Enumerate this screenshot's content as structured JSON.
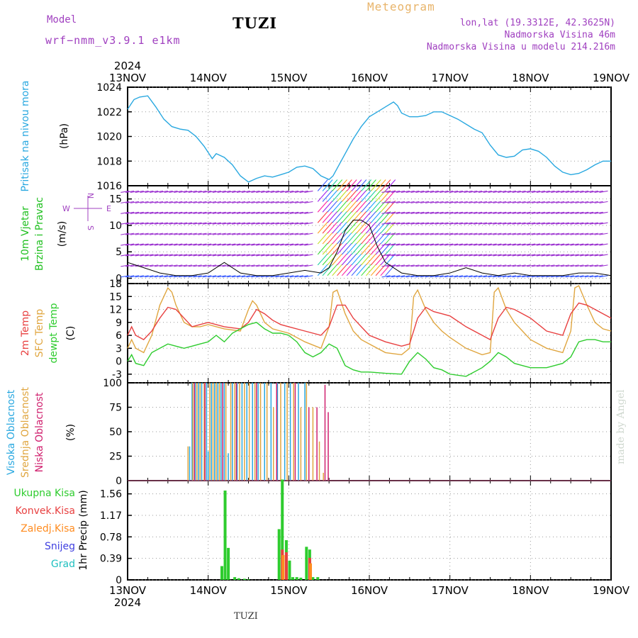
{
  "header": {
    "title": "TUZI",
    "model_label": "Model",
    "model_value": "wrf−nmm_v3.9.1  e1km",
    "meteogram": "Meteogram",
    "info_lines": [
      "lon,lat (19.3312E, 42.3625N)",
      "Nadmorska Visina 46m",
      "Nadmorska Visina u modelu 214.216m"
    ],
    "bottom_name": "TUZI",
    "watermark": "made by Angel"
  },
  "colors": {
    "pressure": "#29a8e0",
    "temp2m": "#e84040",
    "sfc": "#e0a640",
    "dewpt": "#2ecc2e",
    "high_cloud": "#29a8e0",
    "mid_cloud": "#e0a640",
    "low_cloud": "#d0206e",
    "total_precip": "#2ecc2e",
    "conv_precip": "#e84040",
    "frozen_precip": "#ff8c20",
    "snow": "#4040e0",
    "hail": "#20c0c0",
    "wind_label": "#20c020",
    "model_text": "#a040c0"
  },
  "chart_data": [
    {
      "type": "line",
      "title": "",
      "year_label": "2024",
      "x_ticks": [
        "13NOV",
        "14NOV",
        "15NOV",
        "16NOV",
        "17NOV",
        "18NOV",
        "19NOV"
      ],
      "ylabel": "Pritisak na nivou mora",
      "unit": "(hPa)",
      "ylim": [
        1016,
        1024
      ],
      "yticks": [
        1016,
        1018,
        1020,
        1022,
        1024
      ],
      "grid": true,
      "series": [
        {
          "key": "pressure",
          "x": [
            0,
            0.04,
            0.08,
            0.15,
            0.25,
            0.35,
            0.45,
            0.55,
            0.65,
            0.75,
            0.85,
            0.95,
            1.05,
            1.1,
            1.2,
            1.3,
            1.4,
            1.5,
            1.6,
            1.7,
            1.8,
            1.9,
            2.0,
            2.1,
            2.2,
            2.3,
            2.4,
            2.5,
            2.55,
            2.6,
            2.7,
            2.8,
            2.9,
            3.0,
            3.1,
            3.2,
            3.3,
            3.35,
            3.4,
            3.5,
            3.6,
            3.7,
            3.8,
            3.9,
            4.0,
            4.1,
            4.2,
            4.3,
            4.4,
            4.5,
            4.6,
            4.7,
            4.8,
            4.9,
            5.0,
            5.1,
            5.2,
            5.3,
            5.4,
            5.5,
            5.6,
            5.7,
            5.8,
            5.9,
            6.0
          ],
          "y": [
            1022.2,
            1022.6,
            1023.0,
            1023.2,
            1023.3,
            1022.4,
            1021.4,
            1020.8,
            1020.6,
            1020.5,
            1020.0,
            1019.2,
            1018.2,
            1018.6,
            1018.3,
            1017.7,
            1016.8,
            1016.3,
            1016.6,
            1016.8,
            1016.7,
            1016.9,
            1017.1,
            1017.5,
            1017.6,
            1017.4,
            1016.8,
            1016.5,
            1016.8,
            1017.4,
            1018.6,
            1019.8,
            1020.8,
            1021.6,
            1022.0,
            1022.4,
            1022.8,
            1022.5,
            1021.9,
            1021.6,
            1021.6,
            1021.7,
            1022.0,
            1022.0,
            1021.7,
            1021.4,
            1021.0,
            1020.6,
            1020.3,
            1019.3,
            1018.5,
            1018.3,
            1018.4,
            1018.9,
            1019.0,
            1018.8,
            1018.3,
            1017.6,
            1017.1,
            1016.9,
            1017.0,
            1017.3,
            1017.7,
            1018.0,
            1018.0
          ]
        }
      ]
    },
    {
      "type": "line",
      "title": "",
      "ylabel": [
        "10m Vjetar",
        "Brzina i Pravac"
      ],
      "unit": "(m/s)",
      "compass": {
        "n": "N",
        "s": "S",
        "w": "W",
        "e": "E"
      },
      "ylim": [
        -1,
        17.5
      ],
      "yticks": [
        0,
        5,
        10,
        15
      ],
      "grid": true,
      "series": [
        {
          "key": "wind_speed",
          "x": [
            0,
            0.2,
            0.4,
            0.6,
            0.8,
            1.0,
            1.2,
            1.4,
            1.6,
            1.8,
            2.0,
            2.2,
            2.4,
            2.5,
            2.6,
            2.7,
            2.8,
            2.9,
            3.0,
            3.1,
            3.2,
            3.4,
            3.6,
            3.8,
            4.0,
            4.2,
            4.4,
            4.6,
            4.8,
            5.0,
            5.2,
            5.4,
            5.6,
            5.8,
            6.0
          ],
          "y": [
            3,
            2,
            1,
            0.5,
            0.5,
            1,
            3,
            1,
            0.5,
            0.5,
            1,
            1.5,
            1,
            2,
            5,
            9,
            11,
            11,
            10,
            6,
            3,
            1,
            0.5,
            0.5,
            1,
            2,
            1,
            0.5,
            1,
            0.5,
            0.5,
            0.5,
            1,
            1,
            0.5
          ]
        }
      ]
    },
    {
      "type": "line",
      "title": "",
      "ylabel": [
        "2m Temp",
        "SFC Temp",
        "dewpt Temp"
      ],
      "unit": "(C)",
      "ylim": [
        -5,
        18
      ],
      "yticks": [
        -3,
        0,
        3,
        6,
        9,
        12,
        15,
        18
      ],
      "grid": true,
      "series": [
        {
          "key": "temp2m",
          "x": [
            0,
            0.05,
            0.1,
            0.2,
            0.3,
            0.4,
            0.5,
            0.6,
            0.7,
            0.8,
            0.9,
            1.0,
            1.2,
            1.4,
            1.5,
            1.6,
            1.7,
            1.8,
            1.9,
            2.0,
            2.2,
            2.4,
            2.5,
            2.6,
            2.7,
            2.8,
            2.9,
            3.0,
            3.2,
            3.4,
            3.5,
            3.6,
            3.7,
            3.8,
            3.9,
            4.0,
            4.2,
            4.4,
            4.5,
            4.6,
            4.7,
            4.8,
            4.9,
            5.0,
            5.2,
            5.4,
            5.5,
            5.6,
            5.7,
            5.8,
            5.9,
            6.0
          ],
          "y": [
            6,
            8,
            6,
            5,
            7,
            10,
            12.5,
            12,
            10,
            8,
            8.5,
            9,
            8,
            7.5,
            9,
            12,
            11,
            9.5,
            8.5,
            8,
            7,
            6,
            8,
            13,
            13,
            10,
            8,
            6,
            4.5,
            3.5,
            4,
            10,
            12.5,
            11.5,
            11,
            10.5,
            8,
            6,
            5,
            10,
            12.5,
            12,
            11,
            10,
            7,
            6,
            11,
            13.5,
            13,
            12,
            11,
            10
          ]
        },
        {
          "key": "sfc",
          "x": [
            0,
            0.05,
            0.1,
            0.2,
            0.3,
            0.4,
            0.5,
            0.55,
            0.6,
            0.7,
            0.8,
            0.9,
            1.0,
            1.2,
            1.4,
            1.5,
            1.55,
            1.6,
            1.7,
            1.8,
            1.9,
            2.0,
            2.2,
            2.4,
            2.5,
            2.55,
            2.6,
            2.7,
            2.8,
            2.9,
            3.0,
            3.2,
            3.4,
            3.5,
            3.55,
            3.6,
            3.7,
            3.8,
            3.9,
            4.0,
            4.2,
            4.4,
            4.5,
            4.55,
            4.6,
            4.7,
            4.8,
            4.9,
            5.0,
            5.2,
            5.4,
            5.5,
            5.55,
            5.6,
            5.7,
            5.8,
            5.9,
            6.0
          ],
          "y": [
            3,
            5,
            3,
            2,
            6,
            13,
            17,
            16,
            13,
            9,
            8,
            8,
            8.5,
            7.5,
            7,
            12,
            14,
            13,
            9,
            7.5,
            7,
            6.5,
            4.5,
            3,
            8,
            16,
            16.5,
            11,
            7,
            5,
            4,
            2,
            1.5,
            3,
            15,
            16.5,
            12,
            9,
            7,
            5.5,
            3,
            1.5,
            2,
            16,
            17,
            12,
            9,
            7,
            5,
            3,
            2,
            7,
            17,
            17.5,
            13,
            9,
            7.5,
            7
          ]
        },
        {
          "key": "dewpt",
          "x": [
            0,
            0.05,
            0.1,
            0.2,
            0.3,
            0.4,
            0.5,
            0.6,
            0.7,
            0.8,
            0.9,
            1.0,
            1.1,
            1.2,
            1.3,
            1.4,
            1.5,
            1.6,
            1.7,
            1.8,
            1.9,
            2.0,
            2.1,
            2.2,
            2.3,
            2.4,
            2.5,
            2.6,
            2.7,
            2.8,
            2.9,
            3.0,
            3.2,
            3.4,
            3.5,
            3.6,
            3.7,
            3.8,
            3.9,
            4.0,
            4.2,
            4.4,
            4.5,
            4.6,
            4.7,
            4.8,
            4.9,
            5.0,
            5.2,
            5.4,
            5.5,
            5.6,
            5.7,
            5.8,
            5.9,
            6.0
          ],
          "y": [
            0,
            1.5,
            -0.5,
            -1,
            2,
            3,
            4,
            3.5,
            3,
            3.5,
            4,
            4.5,
            6,
            4.5,
            6.5,
            7.5,
            8.5,
            9,
            7.5,
            6.5,
            6.5,
            6,
            4.5,
            2,
            1,
            2,
            4,
            3,
            -1,
            -2,
            -2.5,
            -2.5,
            -2.8,
            -3,
            0,
            2,
            0.5,
            -1.5,
            -2,
            -3,
            -3.5,
            -1.5,
            0,
            2,
            1,
            -0.5,
            -1,
            -1.5,
            -1.5,
            -0.5,
            1,
            4.5,
            5,
            5,
            4.5,
            4.5
          ]
        }
      ]
    },
    {
      "type": "bar",
      "title": "",
      "ylabel": [
        "Visoka Oblacnost",
        "Srednja Oblacnost",
        "Niska Oblacnost"
      ],
      "unit": "(%)",
      "ylim": [
        0,
        100
      ],
      "yticks": [
        0,
        25,
        50,
        75,
        100
      ],
      "grid": true,
      "series": [
        {
          "key": "high_cloud",
          "x": [
            0.77,
            0.8,
            0.84,
            0.88,
            0.92,
            0.98,
            1.0,
            1.04,
            1.08,
            1.12,
            1.16,
            1.2,
            1.25,
            1.3,
            1.36,
            1.42,
            1.48,
            1.55,
            1.62,
            1.7,
            1.78,
            1.86,
            1.95,
            2.02,
            2.12,
            2.2
          ],
          "y": [
            35,
            100,
            100,
            100,
            100,
            100,
            30,
            100,
            100,
            100,
            100,
            100,
            28,
            100,
            100,
            100,
            100,
            100,
            100,
            100,
            100,
            100,
            100,
            100,
            100,
            100
          ]
        },
        {
          "key": "mid_cloud",
          "x": [
            0.75,
            0.81,
            0.86,
            0.9,
            0.95,
            1.02,
            1.06,
            1.1,
            1.14,
            1.22,
            1.28,
            1.33,
            1.39,
            1.45,
            1.51,
            1.58,
            1.65,
            1.73,
            1.81,
            1.9,
            1.98,
            2.06,
            2.15,
            2.22,
            2.3,
            2.38,
            2.43
          ],
          "y": [
            35,
            100,
            100,
            100,
            100,
            100,
            100,
            100,
            100,
            100,
            100,
            100,
            100,
            100,
            100,
            100,
            100,
            100,
            75,
            100,
            100,
            100,
            75,
            100,
            75,
            40,
            8
          ]
        },
        {
          "key": "low_cloud",
          "x": [
            0.83,
            0.96,
            1.18,
            1.35,
            1.6,
            1.85,
            2.08,
            2.25,
            2.35,
            2.45,
            2.49
          ],
          "y": [
            100,
            100,
            100,
            100,
            100,
            100,
            100,
            75,
            75,
            98,
            70
          ]
        }
      ]
    },
    {
      "type": "bar",
      "title": "",
      "legend": [
        "Ukupna Kisa",
        "Konvek.Kisa",
        "Zaledj.Kisa",
        "Snijeg",
        "Grad"
      ],
      "ylabel": "1hr Precip (mm)",
      "ylim": [
        0,
        1.8
      ],
      "yticks": [
        0,
        0.39,
        0.78,
        1.17,
        1.56
      ],
      "grid": true,
      "series": [
        {
          "key": "total_precip",
          "x": [
            1.17,
            1.21,
            1.25,
            1.33,
            1.38,
            1.45,
            1.5,
            1.88,
            1.92,
            1.97,
            2.01,
            2.05,
            2.1,
            2.15,
            2.22,
            2.26,
            2.3,
            2.36
          ],
          "y": [
            0.25,
            1.62,
            0.58,
            0.05,
            0.03,
            0.02,
            0.01,
            0.92,
            1.82,
            0.72,
            0.35,
            0.05,
            0.05,
            0.04,
            0.6,
            0.55,
            0.05,
            0.05
          ]
        },
        {
          "key": "conv_precip",
          "x": [
            1.92,
            1.97,
            2.26
          ],
          "y": [
            0.55,
            0.5,
            0.4
          ]
        },
        {
          "key": "frozen_precip",
          "x": [
            1.93,
            2.27
          ],
          "y": [
            0.45,
            0.3
          ]
        }
      ]
    }
  ],
  "axes_text": {
    "top_year": "2024",
    "bottom_year": "2024"
  }
}
